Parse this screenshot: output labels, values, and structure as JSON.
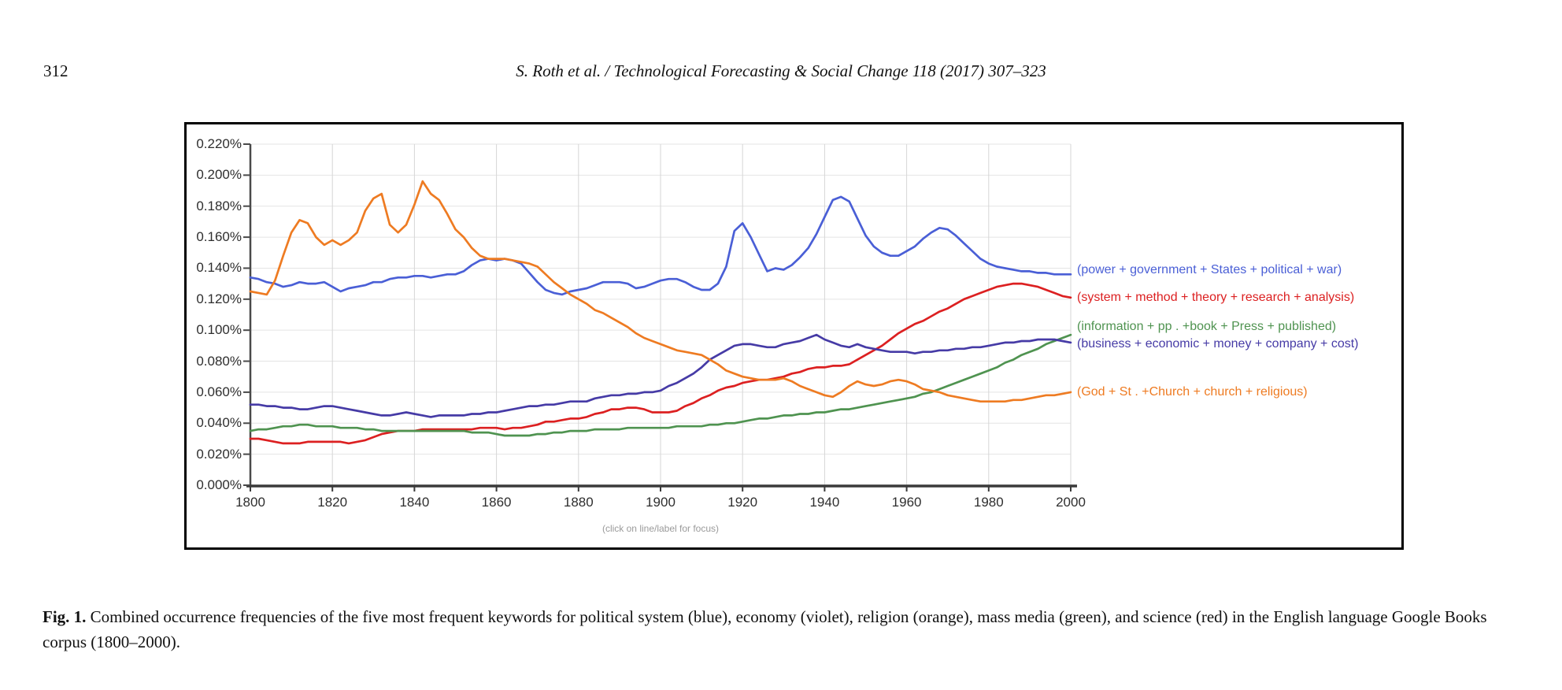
{
  "page": {
    "page_number": "312",
    "running_title": "S. Roth et al. / Technological Forecasting & Social Change 118 (2017) 307–323"
  },
  "figure": {
    "note": "(click on line/label for focus)",
    "caption_label": "Fig. 1.",
    "caption_text": "Combined occurrence frequencies of the five most frequent keywords for political system (blue), economy (violet), religion (orange), mass media (green), and science (red) in the English language Google Books corpus (1800–2000)."
  },
  "chart_data": {
    "type": "line",
    "title": "",
    "xlabel": "",
    "ylabel": "",
    "grid": true,
    "legend_position": "right-of-lines",
    "xlim": [
      1800,
      2000
    ],
    "ylim": [
      0,
      0.22
    ],
    "unit": "percent",
    "xticks": [
      {
        "value": 1800,
        "label": "1800"
      },
      {
        "value": 1820,
        "label": "1820"
      },
      {
        "value": 1840,
        "label": "1840"
      },
      {
        "value": 1860,
        "label": "1860"
      },
      {
        "value": 1880,
        "label": "1880"
      },
      {
        "value": 1900,
        "label": "1900"
      },
      {
        "value": 1920,
        "label": "1920"
      },
      {
        "value": 1940,
        "label": "1940"
      },
      {
        "value": 1960,
        "label": "1960"
      },
      {
        "value": 1980,
        "label": "1980"
      },
      {
        "value": 2000,
        "label": "2000"
      }
    ],
    "yticks": [
      {
        "value": 0.22,
        "label": "0.220%"
      },
      {
        "value": 0.2,
        "label": "0.200%"
      },
      {
        "value": 0.18,
        "label": "0.180%"
      },
      {
        "value": 0.16,
        "label": "0.160%"
      },
      {
        "value": 0.14,
        "label": "0.140%"
      },
      {
        "value": 0.12,
        "label": "0.120%"
      },
      {
        "value": 0.1,
        "label": "0.100%"
      },
      {
        "value": 0.08,
        "label": "0.080%"
      },
      {
        "value": 0.06,
        "label": "0.060%"
      },
      {
        "value": 0.04,
        "label": "0.040%"
      },
      {
        "value": 0.02,
        "label": "0.020%"
      },
      {
        "value": 0.0,
        "label": "0.000%"
      }
    ],
    "x_step": 2,
    "x_start": 1800,
    "series": [
      {
        "name": "political system",
        "label": "(power + government + States + political + war)",
        "color": "#4a5fd6",
        "label_value": 0.138,
        "values": [
          0.134,
          0.133,
          0.131,
          0.13,
          0.128,
          0.129,
          0.131,
          0.13,
          0.13,
          0.131,
          0.128,
          0.125,
          0.127,
          0.128,
          0.129,
          0.131,
          0.131,
          0.133,
          0.134,
          0.134,
          0.135,
          0.135,
          0.134,
          0.135,
          0.136,
          0.136,
          0.138,
          0.142,
          0.145,
          0.146,
          0.145,
          0.146,
          0.145,
          0.143,
          0.137,
          0.131,
          0.126,
          0.124,
          0.123,
          0.125,
          0.126,
          0.127,
          0.129,
          0.131,
          0.131,
          0.131,
          0.13,
          0.127,
          0.128,
          0.13,
          0.132,
          0.133,
          0.133,
          0.131,
          0.128,
          0.126,
          0.126,
          0.13,
          0.141,
          0.164,
          0.169,
          0.16,
          0.149,
          0.138,
          0.14,
          0.139,
          0.142,
          0.147,
          0.153,
          0.162,
          0.173,
          0.184,
          0.186,
          0.183,
          0.172,
          0.161,
          0.154,
          0.15,
          0.148,
          0.148,
          0.151,
          0.154,
          0.159,
          0.163,
          0.166,
          0.165,
          0.161,
          0.156,
          0.151,
          0.146,
          0.143,
          0.141,
          0.14,
          0.139,
          0.138,
          0.138,
          0.137,
          0.137,
          0.136,
          0.136,
          0.136
        ]
      },
      {
        "name": "science",
        "label": "(system + method + theory + research + analysis)",
        "color": "#dc2021",
        "label_value": 0.1205,
        "values": [
          0.03,
          0.03,
          0.029,
          0.028,
          0.027,
          0.027,
          0.027,
          0.028,
          0.028,
          0.028,
          0.028,
          0.028,
          0.027,
          0.028,
          0.029,
          0.031,
          0.033,
          0.034,
          0.035,
          0.035,
          0.035,
          0.036,
          0.036,
          0.036,
          0.036,
          0.036,
          0.036,
          0.036,
          0.037,
          0.037,
          0.037,
          0.036,
          0.037,
          0.037,
          0.038,
          0.039,
          0.041,
          0.041,
          0.042,
          0.043,
          0.043,
          0.044,
          0.046,
          0.047,
          0.049,
          0.049,
          0.05,
          0.05,
          0.049,
          0.047,
          0.047,
          0.047,
          0.048,
          0.051,
          0.053,
          0.056,
          0.058,
          0.061,
          0.063,
          0.064,
          0.066,
          0.067,
          0.068,
          0.068,
          0.069,
          0.07,
          0.072,
          0.073,
          0.075,
          0.076,
          0.076,
          0.077,
          0.077,
          0.078,
          0.081,
          0.084,
          0.087,
          0.09,
          0.094,
          0.098,
          0.101,
          0.104,
          0.106,
          0.109,
          0.112,
          0.114,
          0.117,
          0.12,
          0.122,
          0.124,
          0.126,
          0.128,
          0.129,
          0.13,
          0.13,
          0.129,
          0.128,
          0.126,
          0.124,
          0.122,
          0.121
        ]
      },
      {
        "name": "mass media",
        "label": "(information + pp . +book + Press + published)",
        "color": "#4f9350",
        "label_value": 0.1015,
        "values": [
          0.035,
          0.036,
          0.036,
          0.037,
          0.038,
          0.038,
          0.039,
          0.039,
          0.038,
          0.038,
          0.038,
          0.037,
          0.037,
          0.037,
          0.036,
          0.036,
          0.035,
          0.035,
          0.035,
          0.035,
          0.035,
          0.035,
          0.035,
          0.035,
          0.035,
          0.035,
          0.035,
          0.034,
          0.034,
          0.034,
          0.033,
          0.032,
          0.032,
          0.032,
          0.032,
          0.033,
          0.033,
          0.034,
          0.034,
          0.035,
          0.035,
          0.035,
          0.036,
          0.036,
          0.036,
          0.036,
          0.037,
          0.037,
          0.037,
          0.037,
          0.037,
          0.037,
          0.038,
          0.038,
          0.038,
          0.038,
          0.039,
          0.039,
          0.04,
          0.04,
          0.041,
          0.042,
          0.043,
          0.043,
          0.044,
          0.045,
          0.045,
          0.046,
          0.046,
          0.047,
          0.047,
          0.048,
          0.049,
          0.049,
          0.05,
          0.051,
          0.052,
          0.053,
          0.054,
          0.055,
          0.056,
          0.057,
          0.059,
          0.06,
          0.062,
          0.064,
          0.066,
          0.068,
          0.07,
          0.072,
          0.074,
          0.076,
          0.079,
          0.081,
          0.084,
          0.086,
          0.088,
          0.091,
          0.093,
          0.095,
          0.097
        ]
      },
      {
        "name": "economy",
        "label": "(business + economic + money + company + cost)",
        "color": "#463ba6",
        "label_value": 0.0905,
        "values": [
          0.052,
          0.052,
          0.051,
          0.051,
          0.05,
          0.05,
          0.049,
          0.049,
          0.05,
          0.051,
          0.051,
          0.05,
          0.049,
          0.048,
          0.047,
          0.046,
          0.045,
          0.045,
          0.046,
          0.047,
          0.046,
          0.045,
          0.044,
          0.045,
          0.045,
          0.045,
          0.045,
          0.046,
          0.046,
          0.047,
          0.047,
          0.048,
          0.049,
          0.05,
          0.051,
          0.051,
          0.052,
          0.052,
          0.053,
          0.054,
          0.054,
          0.054,
          0.056,
          0.057,
          0.058,
          0.058,
          0.059,
          0.059,
          0.06,
          0.06,
          0.061,
          0.064,
          0.066,
          0.069,
          0.072,
          0.076,
          0.081,
          0.084,
          0.087,
          0.09,
          0.091,
          0.091,
          0.09,
          0.089,
          0.089,
          0.091,
          0.092,
          0.093,
          0.095,
          0.097,
          0.094,
          0.092,
          0.09,
          0.089,
          0.091,
          0.089,
          0.088,
          0.087,
          0.086,
          0.086,
          0.086,
          0.085,
          0.086,
          0.086,
          0.087,
          0.087,
          0.088,
          0.088,
          0.089,
          0.089,
          0.09,
          0.091,
          0.092,
          0.092,
          0.093,
          0.093,
          0.094,
          0.094,
          0.094,
          0.093,
          0.092
        ]
      },
      {
        "name": "religion",
        "label": "(God + St . +Church + church + religious)",
        "color": "#ee7b22",
        "label_value": 0.0595,
        "values": [
          0.125,
          0.124,
          0.123,
          0.132,
          0.148,
          0.163,
          0.171,
          0.169,
          0.16,
          0.155,
          0.158,
          0.155,
          0.158,
          0.163,
          0.177,
          0.185,
          0.188,
          0.168,
          0.163,
          0.168,
          0.181,
          0.196,
          0.188,
          0.184,
          0.175,
          0.165,
          0.16,
          0.153,
          0.148,
          0.146,
          0.146,
          0.146,
          0.145,
          0.144,
          0.143,
          0.141,
          0.136,
          0.131,
          0.127,
          0.123,
          0.12,
          0.117,
          0.113,
          0.111,
          0.108,
          0.105,
          0.102,
          0.098,
          0.095,
          0.093,
          0.091,
          0.089,
          0.087,
          0.086,
          0.085,
          0.084,
          0.081,
          0.078,
          0.074,
          0.072,
          0.07,
          0.069,
          0.068,
          0.068,
          0.068,
          0.069,
          0.067,
          0.064,
          0.062,
          0.06,
          0.058,
          0.057,
          0.06,
          0.064,
          0.067,
          0.065,
          0.064,
          0.065,
          0.067,
          0.068,
          0.067,
          0.065,
          0.062,
          0.061,
          0.06,
          0.058,
          0.057,
          0.056,
          0.055,
          0.054,
          0.054,
          0.054,
          0.054,
          0.055,
          0.055,
          0.056,
          0.057,
          0.058,
          0.058,
          0.059,
          0.06
        ]
      }
    ]
  }
}
